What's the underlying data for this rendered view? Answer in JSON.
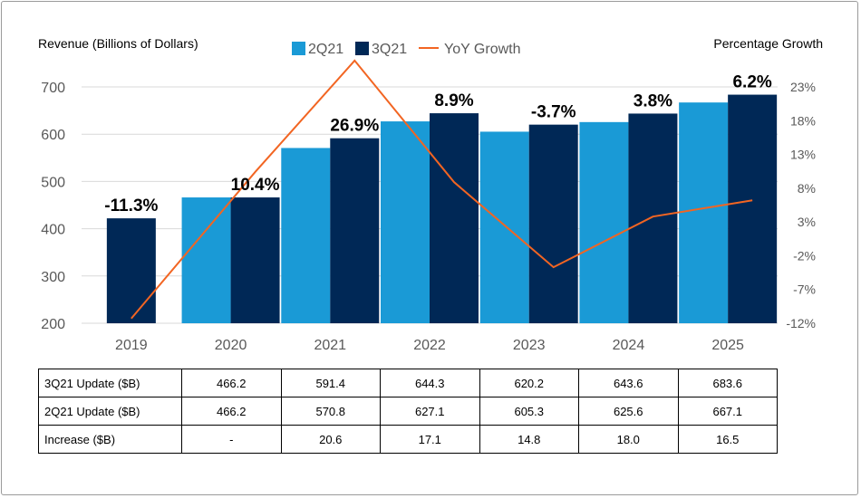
{
  "chart_data": {
    "type": "bar",
    "categories": [
      "2019",
      "2020",
      "2021",
      "2022",
      "2023",
      "2024",
      "2025"
    ],
    "left_axis_title": "Revenue (Billions of Dollars)",
    "right_axis_title": "Percentage Growth",
    "ylim": [
      200,
      700
    ],
    "y_ticks": [
      "200",
      "300",
      "400",
      "500",
      "600",
      "700"
    ],
    "y2lim": [
      -12,
      23
    ],
    "y2_ticks": [
      "-12%",
      "-7%",
      "-2%",
      "3%",
      "8%",
      "13%",
      "18%",
      "23%"
    ],
    "series": [
      {
        "name": "2Q21",
        "kind": "bar",
        "color": "#1a9ad6",
        "values": [
          null,
          466.2,
          570.8,
          627.1,
          605.3,
          625.6,
          667.1
        ]
      },
      {
        "name": "3Q21",
        "kind": "bar",
        "color": "#002856",
        "values": [
          422,
          466.2,
          591.4,
          644.3,
          620.2,
          643.6,
          683.6
        ]
      },
      {
        "name": "YoY Growth",
        "kind": "line",
        "color": "#f26522",
        "values": [
          -11.3,
          10.4,
          26.9,
          8.9,
          -3.7,
          3.8,
          6.2
        ]
      }
    ],
    "data_labels": [
      "-11.3%",
      "10.4%",
      "26.9%",
      "8.9%",
      "-3.7%",
      "3.8%",
      "6.2%"
    ],
    "legend_position": "top-center"
  },
  "table": {
    "rows": [
      {
        "label": "3Q21 Update ($B)",
        "values": [
          "466.2",
          "591.4",
          "644.3",
          "620.2",
          "643.6",
          "683.6"
        ]
      },
      {
        "label": "2Q21 Update ($B)",
        "values": [
          "466.2",
          "570.8",
          "627.1",
          "605.3",
          "625.6",
          "667.1"
        ]
      },
      {
        "label": "Increase ($B)",
        "values": [
          "-",
          "20.6",
          "17.1",
          "14.8",
          "18.0",
          "16.5"
        ]
      }
    ]
  }
}
